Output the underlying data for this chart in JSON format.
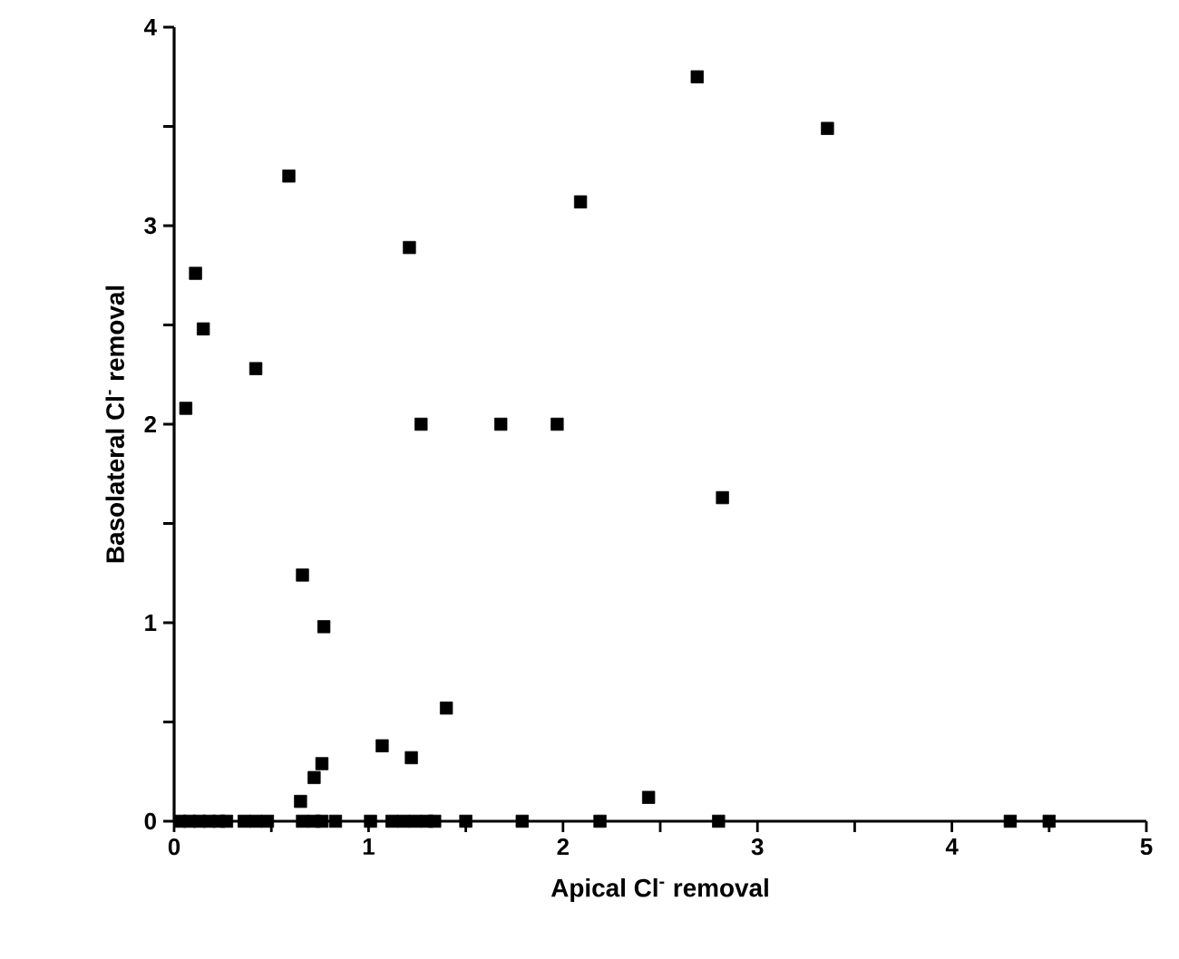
{
  "chart_data": {
    "type": "scatter",
    "xlabel": "Apical Cl$^{-}$ removal",
    "ylabel": "Basolateral Cl$^{-}$ removal",
    "xlim": [
      0,
      5
    ],
    "ylim": [
      0,
      4
    ],
    "xticks": [
      0,
      {
        "value": 0.5,
        "label": null
      },
      1,
      {
        "value": 1.5,
        "label": null
      },
      2,
      {
        "value": 2.5,
        "label": null
      },
      3,
      {
        "value": 3.5,
        "label": null
      },
      4,
      {
        "value": 4.5,
        "label": null
      },
      5
    ],
    "yticks": [
      0,
      {
        "value": 0.5,
        "label": null
      },
      1,
      {
        "value": 1.5,
        "label": null
      },
      2,
      {
        "value": 2.5,
        "label": null
      },
      3,
      {
        "value": 3.5,
        "label": null
      },
      4
    ],
    "marker": "square",
    "series": [
      {
        "color": "#000000",
        "x": [
          0.59,
          0.11,
          0.15,
          0.42,
          0.06,
          1.21,
          2.09,
          1.27,
          1.68,
          1.97,
          0.66,
          0.77,
          1.4,
          2.69,
          3.36,
          2.82,
          1.07,
          1.22,
          0.76,
          0.72,
          0.65,
          2.44,
          0.03,
          0.08,
          0.13,
          0.18,
          0.23,
          0.27,
          0.36,
          0.42,
          0.48,
          0.66,
          0.72,
          0.76,
          0.83,
          1.01,
          1.12,
          1.18,
          1.24,
          1.3,
          1.34,
          1.5,
          1.79,
          2.19,
          2.8,
          4.3,
          4.5
        ],
        "values": [
          3.25,
          2.76,
          2.48,
          2.28,
          2.08,
          2.89,
          3.12,
          2.0,
          2.0,
          2.0,
          1.24,
          0.98,
          0.57,
          3.75,
          3.49,
          1.63,
          0.38,
          0.32,
          0.29,
          0.22,
          0.1,
          0.12,
          0,
          0,
          0,
          0,
          0,
          0,
          0,
          0,
          0,
          0,
          0,
          0,
          0,
          0,
          0,
          0,
          0,
          0,
          0,
          0,
          0,
          0,
          0,
          0,
          0
        ]
      }
    ]
  }
}
